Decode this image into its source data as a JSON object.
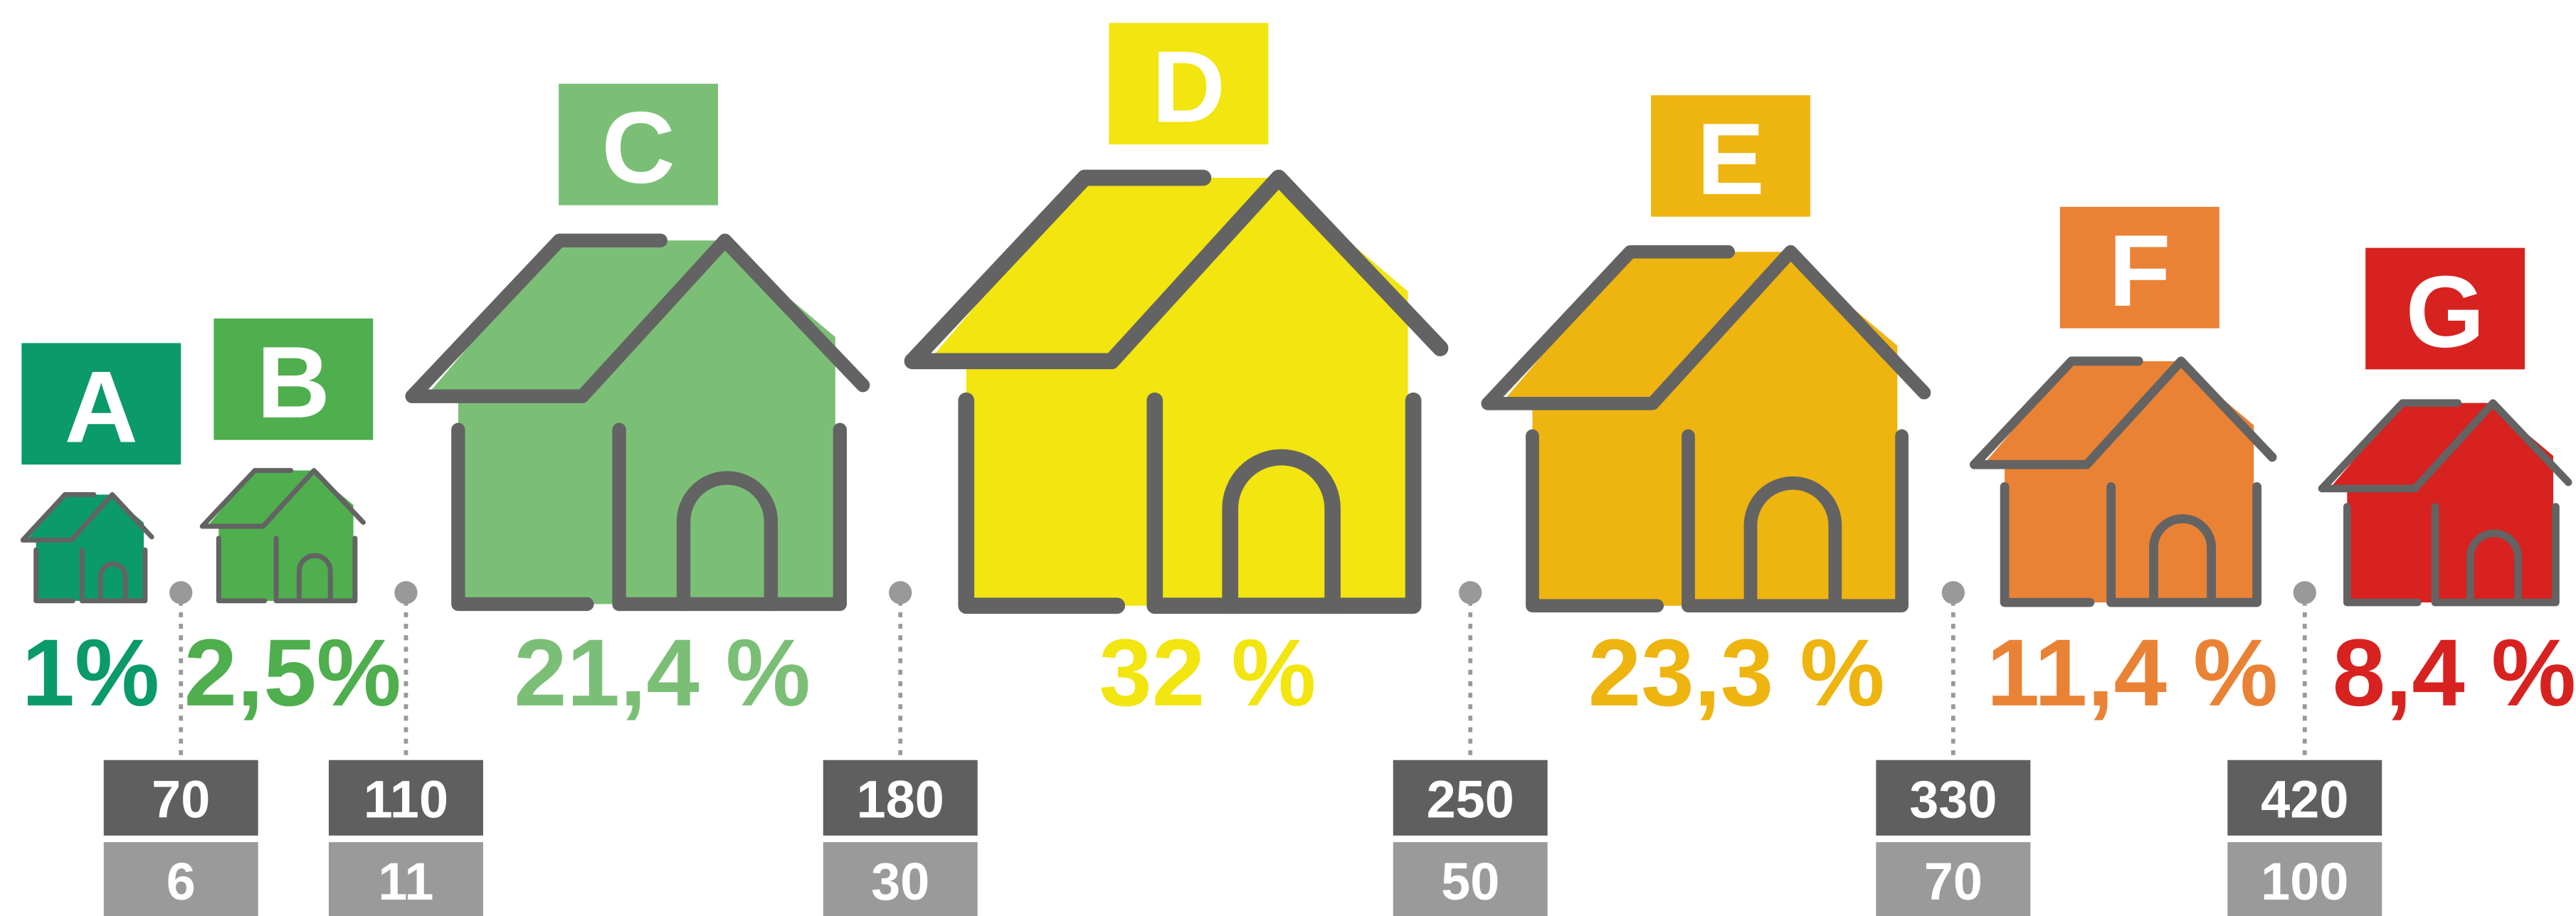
{
  "classes": [
    {
      "letter": "A",
      "percent": "1%",
      "color": "#0b9a69"
    },
    {
      "letter": "B",
      "percent": "2,5%",
      "color": "#4fae4d"
    },
    {
      "letter": "C",
      "percent": "21,4 %",
      "color": "#7bbf76"
    },
    {
      "letter": "D",
      "percent": "32 %",
      "color": "#f2e510"
    },
    {
      "letter": "E",
      "percent": "23,3 %",
      "color": "#eeb410"
    },
    {
      "letter": "F",
      "percent": "11,4 %",
      "color": "#ea8235"
    },
    {
      "letter": "G",
      "percent": "8,4 %",
      "color": "#d7221f"
    }
  ],
  "thresholds": [
    {
      "upper": 70,
      "lower": 6
    },
    {
      "upper": 110,
      "lower": 11
    },
    {
      "upper": 180,
      "lower": 30
    },
    {
      "upper": 250,
      "lower": 50
    },
    {
      "upper": 330,
      "lower": 70
    },
    {
      "upper": 420,
      "lower": 100
    }
  ]
}
